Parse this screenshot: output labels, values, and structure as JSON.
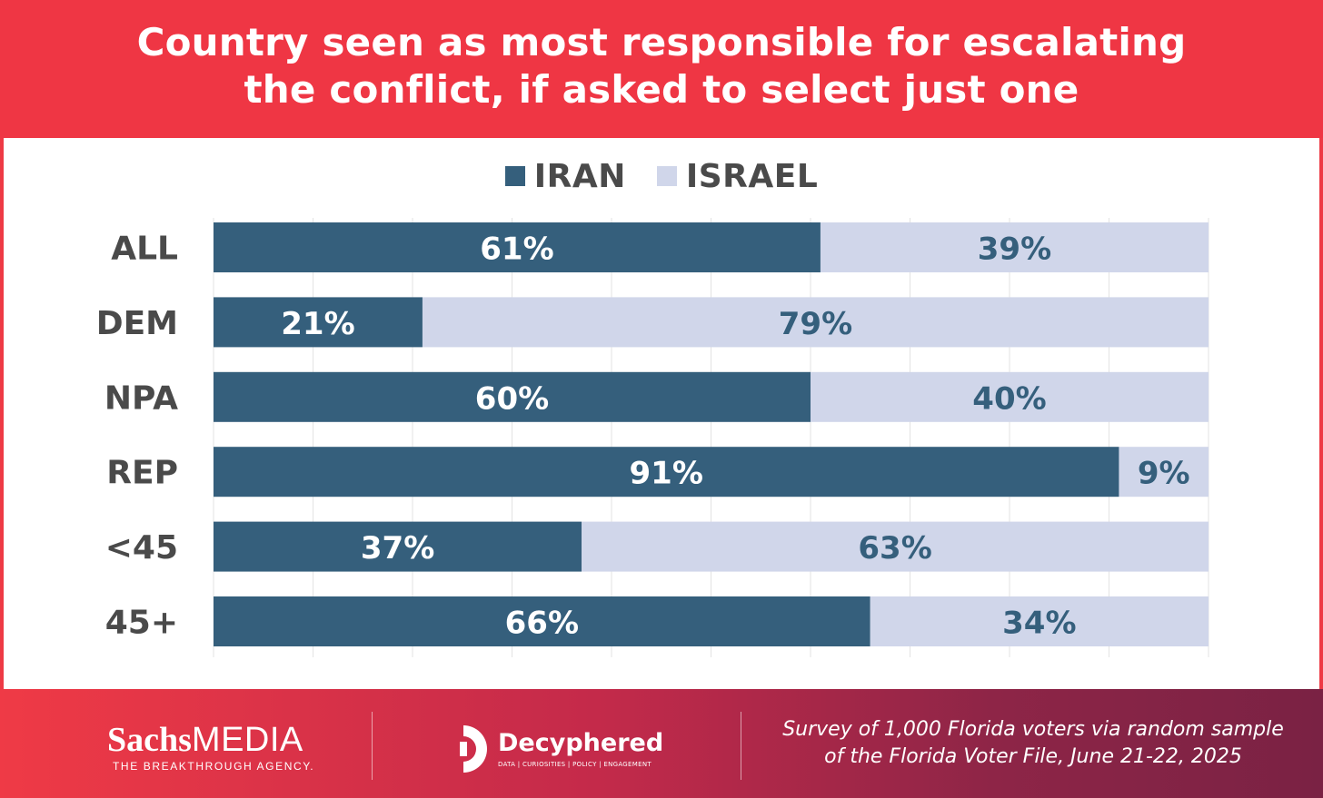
{
  "header": {
    "title_line1": "Country seen as most responsible for escalating",
    "title_line2": "the conflict, if asked to select just one"
  },
  "colors": {
    "header_red": "#ef3644",
    "iran": "#355f7c",
    "israel": "#d0d6ea",
    "iran_label": "#ffffff",
    "israel_label": "#355f7c",
    "category_label": "#4a4a4a"
  },
  "legend": [
    {
      "label": "IRAN",
      "color": "#355f7c"
    },
    {
      "label": "ISRAEL",
      "color": "#d0d6ea"
    }
  ],
  "chart_data": {
    "type": "bar",
    "orientation": "horizontal",
    "stacked": true,
    "title": "Country seen as most responsible for escalating the conflict, if asked to select just one",
    "categories": [
      "ALL",
      "DEM",
      "NPA",
      "REP",
      "<45",
      "45+"
    ],
    "series": [
      {
        "name": "IRAN",
        "values": [
          61,
          21,
          60,
          91,
          37,
          66
        ],
        "labels": [
          "61%",
          "21%",
          "60%",
          "91%",
          "37%",
          "66%"
        ]
      },
      {
        "name": "ISRAEL",
        "values": [
          39,
          79,
          40,
          9,
          63,
          34
        ],
        "labels": [
          "39%",
          "79%",
          "40%",
          "9%",
          "63%",
          "34%"
        ]
      }
    ],
    "xlim": [
      0,
      100
    ],
    "grid": true,
    "legend_position": "top-center",
    "xlabel": "",
    "ylabel": ""
  },
  "footer": {
    "sachs_brand_bold": "Sachs",
    "sachs_brand_light": "MEDIA",
    "sachs_tagline": "THE BREAKTHROUGH AGENCY.",
    "decyphered_name": "Decyphered",
    "decyphered_tagline": "DATA | CURIOSITIES | POLICY | ENGAGEMENT",
    "footnote_line1": "Survey of 1,000 Florida voters via random sample",
    "footnote_line2": "of the Florida Voter File, June 21-22, 2025"
  }
}
